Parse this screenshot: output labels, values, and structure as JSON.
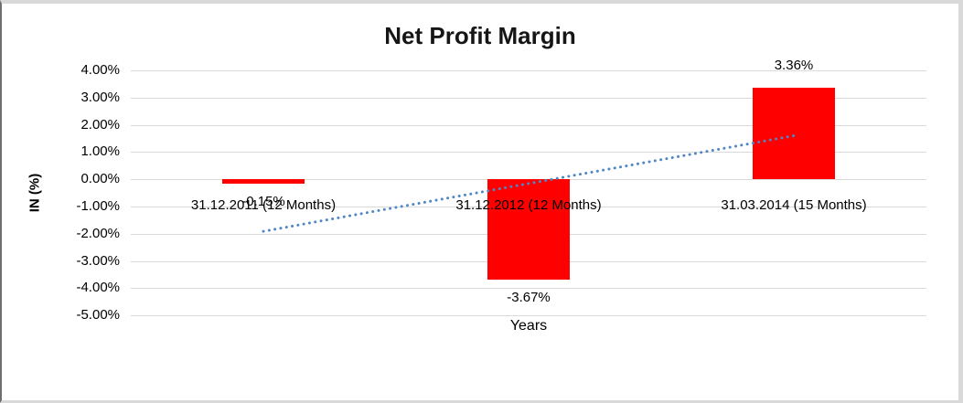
{
  "chart_data": {
    "type": "bar",
    "title": "Net Profit Margin",
    "xlabel": "Years",
    "ylabel": "IN (%)",
    "categories": [
      "31.12.2011 (12 Months)",
      "31.12.2012 (12 Months)",
      "31.03.2014 (15 Months)"
    ],
    "values": [
      -0.15,
      -3.67,
      3.36
    ],
    "data_labels": [
      "-0.15%",
      "-3.67%",
      "3.36%"
    ],
    "ylim": [
      -5,
      4
    ],
    "ytick_values": [
      4,
      3,
      2,
      1,
      0,
      -1,
      -2,
      -3,
      -4,
      -5
    ],
    "ytick_labels": [
      "4.00%",
      "3.00%",
      "2.00%",
      "1.00%",
      "0.00%",
      "-1.00%",
      "-2.00%",
      "-3.00%",
      "-4.00%",
      "-5.00%"
    ],
    "grid": true,
    "legend": false,
    "bar_color": "#ff0000",
    "gridline_color": "#d9d9d9",
    "trendline": {
      "type": "linear",
      "style": "dotted",
      "color": "#4f86c6",
      "start_value": -1.91,
      "end_value": 1.6
    }
  }
}
